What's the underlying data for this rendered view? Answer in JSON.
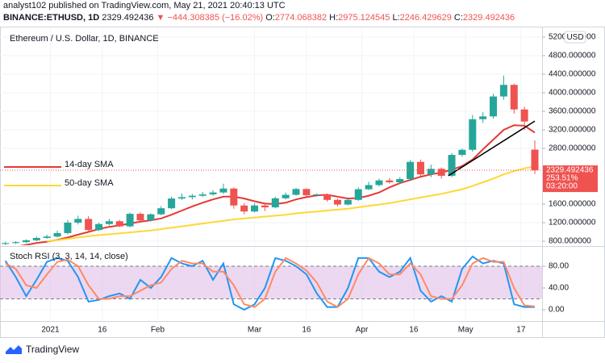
{
  "header": {
    "published": "analyst102 published on TradingView.com, May 21, 2021 20:40:13 UTC",
    "symbol": "BINANCE:ETHUSD, 1D",
    "change": "▼ −444.308385 (−16.02%)",
    "ohlc_labels": [
      "O:",
      "H:",
      "L:",
      "C:"
    ]
  },
  "footer": {
    "brand": "TradingView"
  },
  "chart_data": [
    {
      "type": "candlestick",
      "title": "Ethereum / U.S. Dollar, 1D, BINANCE",
      "currency": "USD",
      "x": [
        -12,
        -9,
        -6,
        -3,
        0,
        3,
        6,
        9,
        12,
        15,
        18,
        21,
        24,
        27,
        30,
        33,
        36,
        39,
        42,
        45,
        48,
        51,
        54,
        57,
        60,
        63,
        66,
        69,
        72,
        75,
        78,
        81,
        84,
        87,
        90,
        93,
        96,
        99,
        102,
        105,
        108,
        111,
        114,
        117,
        120,
        123,
        126,
        129,
        132,
        135,
        138,
        141
      ],
      "open": [
        740,
        760,
        780,
        820,
        870,
        900,
        975,
        1200,
        1280,
        1040,
        1170,
        1230,
        1120,
        1390,
        1250,
        1380,
        1510,
        1720,
        1750,
        1780,
        1810,
        1850,
        1935,
        1570,
        1440,
        1570,
        1530,
        1725,
        1800,
        1925,
        1790,
        1810,
        1690,
        1590,
        1690,
        1920,
        2010,
        2110,
        2070,
        2140,
        2510,
        2240,
        2360,
        2210,
        2660,
        2770,
        3430,
        3490,
        3920,
        4170,
        3640,
        2774.068382
      ],
      "high": [
        790,
        800,
        840,
        900,
        940,
        1030,
        1260,
        1350,
        1340,
        1200,
        1280,
        1260,
        1420,
        1420,
        1400,
        1560,
        1760,
        1830,
        1820,
        1860,
        1900,
        2040,
        1960,
        1620,
        1620,
        1600,
        1760,
        1850,
        1950,
        1940,
        1830,
        1830,
        1720,
        1710,
        1960,
        2080,
        2150,
        2160,
        2180,
        2550,
        2560,
        2450,
        2390,
        2700,
        2800,
        3520,
        3580,
        3980,
        4370,
        4200,
        3700,
        2975.124545
      ],
      "low": [
        720,
        740,
        760,
        800,
        850,
        880,
        950,
        1160,
        1000,
        1020,
        1140,
        1100,
        1100,
        1230,
        1230,
        1360,
        1490,
        1690,
        1700,
        1750,
        1780,
        1820,
        1500,
        1380,
        1420,
        1450,
        1510,
        1700,
        1780,
        1760,
        1760,
        1650,
        1550,
        1570,
        1670,
        1900,
        1980,
        2040,
        2030,
        2100,
        2200,
        2180,
        2150,
        2180,
        2620,
        2730,
        3350,
        3440,
        3850,
        3550,
        3200,
        2246.429629
      ],
      "close": [
        760,
        780,
        820,
        870,
        900,
        975,
        1200,
        1280,
        1040,
        1170,
        1230,
        1120,
        1390,
        1250,
        1380,
        1510,
        1720,
        1750,
        1780,
        1810,
        1850,
        1935,
        1570,
        1440,
        1570,
        1530,
        1725,
        1800,
        1925,
        1790,
        1810,
        1690,
        1590,
        1690,
        1920,
        2010,
        2110,
        2070,
        2140,
        2510,
        2240,
        2360,
        2210,
        2660,
        2770,
        3430,
        3490,
        3920,
        4170,
        3640,
        3380,
        2329.492436
      ],
      "up_color": "#26a69a",
      "down_color": "#ef5350",
      "series": [
        {
          "name": "14-day SMA",
          "color": "#e53935",
          "values": [
            640,
            680,
            720,
            760,
            790,
            830,
            880,
            940,
            1000,
            1060,
            1110,
            1140,
            1180,
            1220,
            1250,
            1290,
            1370,
            1460,
            1550,
            1630,
            1700,
            1760,
            1760,
            1720,
            1660,
            1610,
            1600,
            1630,
            1700,
            1750,
            1790,
            1800,
            1760,
            1720,
            1730,
            1780,
            1850,
            1960,
            2050,
            2120,
            2190,
            2240,
            2280,
            2340,
            2420,
            2560,
            2780,
            2990,
            3200,
            3300,
            3290,
            3140
          ]
        },
        {
          "name": "50-day SMA",
          "color": "#fdd835",
          "values": [
            null,
            null,
            null,
            null,
            800,
            820,
            850,
            880,
            910,
            930,
            950,
            970,
            990,
            1010,
            1030,
            1060,
            1090,
            1120,
            1150,
            1180,
            1210,
            1240,
            1270,
            1290,
            1310,
            1330,
            1350,
            1370,
            1400,
            1420,
            1440,
            1460,
            1480,
            1500,
            1530,
            1560,
            1590,
            1620,
            1660,
            1700,
            1740,
            1780,
            1820,
            1870,
            1920,
            1990,
            2070,
            2150,
            2240,
            2310,
            2370,
            2410
          ]
        }
      ],
      "trendline": {
        "x": [
          116,
          141
        ],
        "y": [
          2210,
          3390
        ],
        "color": "#000000"
      },
      "price_box_extra": [
        "253.51%",
        "03:20:00"
      ],
      "xlim": [
        -12.4,
        143.1
      ],
      "ylim": [
        713,
        5339
      ],
      "xticks": [
        {
          "value": 1,
          "label": "2021"
        },
        {
          "value": 16,
          "label": "16"
        },
        {
          "value": 32,
          "label": "Feb"
        },
        {
          "value": 60,
          "label": "Mar"
        },
        {
          "value": 75,
          "label": "16"
        },
        {
          "value": 91,
          "label": "Apr"
        },
        {
          "value": 106,
          "label": "16"
        },
        {
          "value": 121,
          "label": "May"
        },
        {
          "value": 137,
          "label": "17"
        }
      ],
      "yticks": [
        {
          "value": 800,
          "label": "800.000000"
        },
        {
          "value": 1200,
          "label": "1200.000000"
        },
        {
          "value": 1600,
          "label": "1600.000000"
        },
        {
          "value": 2800,
          "label": "2800.000000"
        },
        {
          "value": 3200,
          "label": "3200.000000"
        },
        {
          "value": 3600,
          "label": "3600.000000"
        },
        {
          "value": 4000,
          "label": "4000.000000"
        },
        {
          "value": 4400,
          "label": "4400.000000"
        },
        {
          "value": 4800,
          "label": "4800.000000"
        },
        {
          "value": 5200,
          "label": "5200.000000"
        }
      ],
      "grid": true
    },
    {
      "type": "line",
      "title": "Stoch RSI (3, 3, 14, 14, close)",
      "x": [
        -12,
        -9,
        -6,
        -3,
        0,
        3,
        6,
        9,
        12,
        15,
        18,
        21,
        24,
        27,
        30,
        33,
        36,
        39,
        42,
        45,
        48,
        51,
        54,
        57,
        60,
        63,
        66,
        69,
        72,
        75,
        78,
        81,
        84,
        87,
        90,
        93,
        96,
        99,
        102,
        105,
        108,
        111,
        114,
        117,
        120,
        123,
        126,
        129,
        132,
        135,
        138,
        141
      ],
      "series": [
        {
          "color": "#2196f3",
          "values": [
            90,
            60,
            25,
            55,
            88,
            95,
            90,
            60,
            15,
            18,
            25,
            30,
            20,
            55,
            40,
            60,
            95,
            85,
            80,
            90,
            55,
            85,
            10,
            0,
            10,
            40,
            95,
            90,
            80,
            65,
            30,
            5,
            5,
            40,
            95,
            95,
            70,
            60,
            70,
            95,
            35,
            15,
            25,
            15,
            75,
            98,
            85,
            90,
            85,
            10,
            5,
            5
          ]
        },
        {
          "color": "#ff8a65",
          "values": [
            85,
            75,
            45,
            40,
            65,
            88,
            92,
            80,
            45,
            20,
            20,
            25,
            25,
            35,
            45,
            50,
            75,
            90,
            85,
            85,
            70,
            70,
            45,
            10,
            5,
            20,
            70,
            95,
            85,
            72,
            50,
            15,
            5,
            20,
            65,
            95,
            85,
            65,
            65,
            85,
            65,
            25,
            20,
            20,
            45,
            85,
            95,
            88,
            88,
            40,
            8,
            6
          ]
        }
      ],
      "bands": [
        20,
        80
      ],
      "band_color": "#e1bee7",
      "xlim": [
        -12.4,
        143.1
      ],
      "ylim": [
        -16.3,
        112.6
      ],
      "yticks": [
        {
          "value": 0,
          "label": "0.00"
        },
        {
          "value": 40,
          "label": "40.00"
        },
        {
          "value": 80,
          "label": "80.00"
        }
      ],
      "grid": true
    }
  ]
}
